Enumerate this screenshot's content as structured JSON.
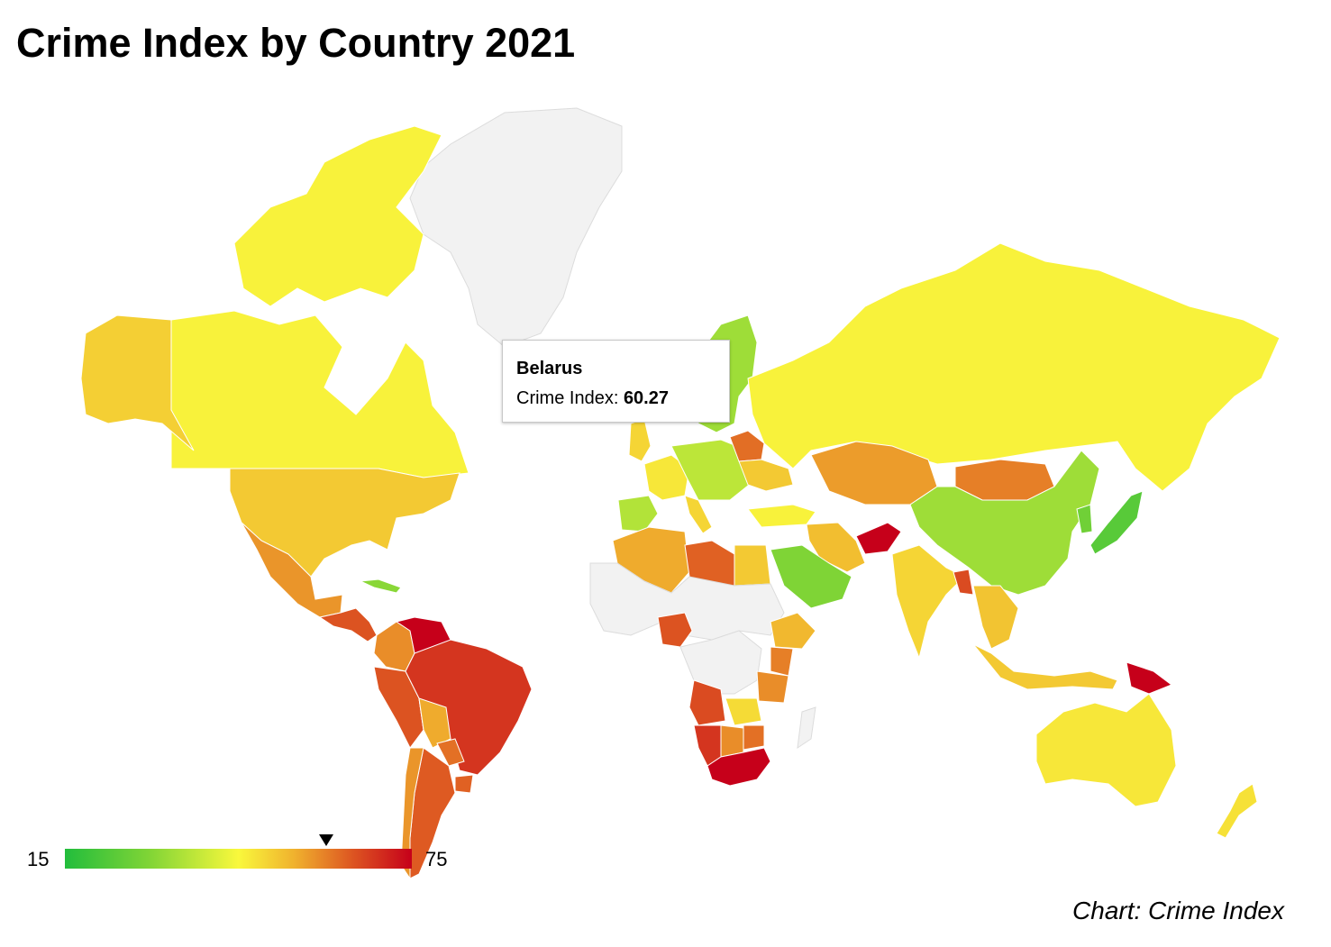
{
  "title": "Crime Index by Country 2021",
  "source": "Chart: Crime Index",
  "tooltip": {
    "country": "Belarus",
    "metric_label": "Crime Index: ",
    "value": "60.27"
  },
  "legend": {
    "min": 15,
    "max": 75,
    "min_label": "15",
    "max_label": "75",
    "marker_value": 60.27,
    "colors": [
      "#22bd3c",
      "#7fd436",
      "#f9f83c",
      "#f0b22e",
      "#de5a22",
      "#c6001a"
    ]
  },
  "chart_data": {
    "type": "choropleth",
    "metric": "Crime Index",
    "scale": {
      "min": 15,
      "max": 75
    },
    "no_data_color": "#f2f2f2",
    "highlighted": {
      "country": "Belarus",
      "value": 60.27
    },
    "regions": [
      {
        "id": "greenland",
        "value": null
      },
      {
        "id": "alaska",
        "value": 46
      },
      {
        "id": "canada",
        "value": 40
      },
      {
        "id": "usa",
        "value": 47
      },
      {
        "id": "mexico",
        "value": 55
      },
      {
        "id": "central-america",
        "value": 64
      },
      {
        "id": "cuba",
        "value": 28
      },
      {
        "id": "colombia",
        "value": 56
      },
      {
        "id": "venezuela",
        "value": 75
      },
      {
        "id": "brazil",
        "value": 68
      },
      {
        "id": "peru",
        "value": 64
      },
      {
        "id": "bolivia",
        "value": 52
      },
      {
        "id": "paraguay",
        "value": 60
      },
      {
        "id": "chile",
        "value": 55
      },
      {
        "id": "argentina",
        "value": 63
      },
      {
        "id": "uruguay",
        "value": 62
      },
      {
        "id": "iceland",
        "value": null
      },
      {
        "id": "scandinavia",
        "value": 30
      },
      {
        "id": "uk",
        "value": 45
      },
      {
        "id": "western-europe",
        "value": 42
      },
      {
        "id": "iberia",
        "value": 32
      },
      {
        "id": "italy",
        "value": 45
      },
      {
        "id": "central-europe",
        "value": 33
      },
      {
        "id": "belarus",
        "value": 60.27
      },
      {
        "id": "ukraine",
        "value": 47
      },
      {
        "id": "turkey",
        "value": 40
      },
      {
        "id": "russia",
        "value": 40
      },
      {
        "id": "kazakhstan",
        "value": 54
      },
      {
        "id": "mongolia",
        "value": 58
      },
      {
        "id": "china",
        "value": 30
      },
      {
        "id": "japan",
        "value": 22
      },
      {
        "id": "korea",
        "value": 25
      },
      {
        "id": "iran",
        "value": 49
      },
      {
        "id": "afghanistan",
        "value": 75
      },
      {
        "id": "saudi-arabia",
        "value": 27
      },
      {
        "id": "india",
        "value": 45
      },
      {
        "id": "bangladesh",
        "value": 65
      },
      {
        "id": "southeast-asia",
        "value": 48
      },
      {
        "id": "indonesia",
        "value": 47
      },
      {
        "id": "papua-new-guinea",
        "value": 79
      },
      {
        "id": "australia",
        "value": 42
      },
      {
        "id": "new-zealand",
        "value": 43
      },
      {
        "id": "algeria",
        "value": 52
      },
      {
        "id": "libya",
        "value": 62
      },
      {
        "id": "egypt",
        "value": 47
      },
      {
        "id": "sahel",
        "value": null
      },
      {
        "id": "central-africa",
        "value": null
      },
      {
        "id": "nigeria",
        "value": 64
      },
      {
        "id": "ethiopia",
        "value": 50
      },
      {
        "id": "kenya",
        "value": 58
      },
      {
        "id": "tanzania",
        "value": 56
      },
      {
        "id": "angola",
        "value": 65
      },
      {
        "id": "namibia",
        "value": 68
      },
      {
        "id": "zambia",
        "value": 44
      },
      {
        "id": "zimbabwe",
        "value": 60
      },
      {
        "id": "botswana",
        "value": 56
      },
      {
        "id": "south-africa",
        "value": 77
      },
      {
        "id": "madagascar",
        "value": null
      }
    ]
  }
}
